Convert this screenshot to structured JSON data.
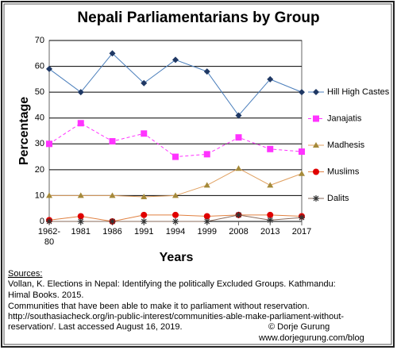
{
  "chart_data": {
    "type": "line",
    "title": "Nepali Parliamentarians by Group",
    "x_label": "Years",
    "y_label": "Percentage",
    "categories": [
      "1962-80",
      "1981",
      "1986",
      "1991",
      "1994",
      "1999",
      "2008",
      "2013",
      "2017"
    ],
    "ylim": [
      0,
      70
    ],
    "yticks": [
      0,
      10,
      20,
      30,
      40,
      50,
      60,
      70
    ],
    "grid": true,
    "legend": "right",
    "series": [
      {
        "name": "Hill High Castes",
        "color": "#1f3864",
        "line_color": "#4a7ebb",
        "marker": "diamond",
        "dashed": false,
        "values": [
          59,
          50,
          65,
          53.5,
          62.5,
          58,
          41,
          55,
          50
        ]
      },
      {
        "name": "Janajatis",
        "color": "#ff33ff",
        "line_color": "#ff33ff",
        "marker": "square",
        "dashed": true,
        "values": [
          30,
          38,
          31,
          34,
          25,
          26,
          32.5,
          28,
          27
        ]
      },
      {
        "name": "Madhesis",
        "color": "#a58a3a",
        "line_color": "#e0a060",
        "marker": "triangle",
        "dashed": false,
        "values": [
          10,
          10,
          10,
          9.5,
          10,
          14,
          20.5,
          14,
          18.5
        ]
      },
      {
        "name": "Muslims",
        "color": "#e00000",
        "line_color": "#e08040",
        "marker": "circle",
        "dashed": false,
        "values": [
          0.5,
          2,
          0,
          2.5,
          2.5,
          2,
          2.5,
          2.5,
          2
        ]
      },
      {
        "name": "Dalits",
        "color": "#333333",
        "line_color": "#8a6a5a",
        "marker": "star",
        "dashed": false,
        "values": [
          0,
          0,
          0,
          0,
          0,
          0,
          2.5,
          0.5,
          1.5
        ]
      }
    ]
  },
  "sources": {
    "heading": "Sources:",
    "lines": [
      "Vollan, K.  Elections in Nepal: Identifying the politically Excluded Groups.  Kathmandu:",
      "Himal Books.  2015.",
      "Communities  that have been able to make it to parliament without reservation.",
      "http://southasiacheck.org/in-public-interest/communities-able-make-parliament-without-",
      "reservation/.  Last accessed August 16, 2019."
    ],
    "credit": [
      "© Dorje Gurung",
      "www.dorjegurung.com/blog"
    ]
  }
}
